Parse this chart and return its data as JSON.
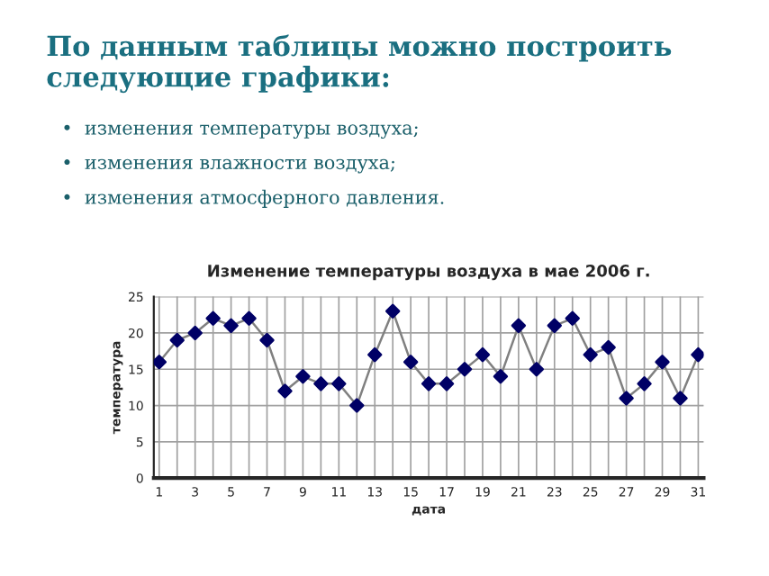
{
  "chart_data": {
    "type": "line",
    "title": "Изменение температуры воздуха в мае 2006 г.",
    "xlabel": "дата",
    "ylabel": "температура",
    "annotations": [
      "По данным таблицы можно построить следующие графики:",
      "•  изменения температуры воздуха;",
      "•  изменения влажности воздуха;",
      "•  изменения атмосферного давления."
    ],
    "categories": [
      "1",
      null,
      "3",
      null,
      "5",
      null,
      "7",
      null,
      "9",
      null,
      "11",
      null,
      "13",
      null,
      "15",
      null,
      "17",
      null,
      "19",
      null,
      "21",
      null,
      "23",
      null,
      "25",
      null,
      "27",
      null,
      "29",
      null,
      "31"
    ],
    "series": [
      {
        "color": "#000066",
        "values": [
          16,
          19,
          20,
          22,
          21,
          22,
          19,
          12,
          14,
          13,
          13,
          10,
          17,
          23,
          16,
          13,
          13,
          15,
          17,
          14,
          21,
          15,
          21,
          22,
          17,
          18,
          11,
          13,
          16,
          11,
          17
        ]
      }
    ],
    "ylim": [
      0,
      25
    ],
    "yticks": [
      0,
      5,
      10,
      15,
      20,
      25
    ],
    "grid": true,
    "marker": "diamond",
    "line_style": "solid"
  }
}
